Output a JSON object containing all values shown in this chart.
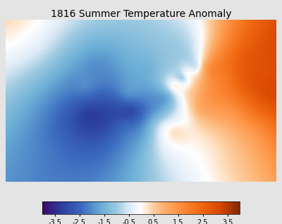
{
  "title": "1816 Summer Temperature Anomaly",
  "title_fontsize": 10,
  "colorbar_ticks": [
    -3.5,
    -2.5,
    -1.5,
    -0.5,
    0.5,
    1.5,
    2.5,
    3.5
  ],
  "colorbar_ticklabels": [
    "-3.5",
    "-2.5",
    "-1.5",
    "-0.5",
    "0.5",
    "1.5",
    "2.5",
    "3.5"
  ],
  "vmin": -4.0,
  "vmax": 4.0,
  "figsize": [
    4.0,
    3.18
  ],
  "dpi": 100,
  "map_extent": [
    -25,
    50,
    28,
    73
  ],
  "background_color": "#e4e4e4",
  "ocean_color": "#ccdcec",
  "land_nodata_color": "#d8d8d8",
  "grid_color": "#bbbbbb",
  "border_color": "#aaaaaa",
  "colormap_nodes": [
    [
      0.0,
      "#3b0a6e"
    ],
    [
      0.1,
      "#2b3f9e"
    ],
    [
      0.2,
      "#3b6bbf"
    ],
    [
      0.3,
      "#6baed6"
    ],
    [
      0.38,
      "#9ecae1"
    ],
    [
      0.44,
      "#deebf7"
    ],
    [
      0.5,
      "#ffffff"
    ],
    [
      0.56,
      "#fdd0a2"
    ],
    [
      0.62,
      "#fdae6b"
    ],
    [
      0.7,
      "#fd8d3c"
    ],
    [
      0.8,
      "#f16913"
    ],
    [
      0.9,
      "#d94801"
    ],
    [
      1.0,
      "#7f2704"
    ]
  ],
  "control_points": [
    [
      -8.5,
      39.5,
      -2.5
    ],
    [
      -3.7,
      40.4,
      -2.8
    ],
    [
      2.3,
      43.5,
      -3.0
    ],
    [
      -2.0,
      47.0,
      -3.2
    ],
    [
      10.0,
      47.5,
      -3.0
    ],
    [
      4.5,
      52.0,
      -2.5
    ],
    [
      -3.0,
      54.5,
      -2.0
    ],
    [
      9.0,
      52.0,
      -2.0
    ],
    [
      12.5,
      48.5,
      -2.5
    ],
    [
      15.0,
      51.0,
      -2.0
    ],
    [
      13.0,
      44.0,
      -2.0
    ],
    [
      17.5,
      47.0,
      -1.5
    ],
    [
      20.0,
      52.0,
      -1.5
    ],
    [
      24.0,
      57.0,
      -1.0
    ],
    [
      15.0,
      59.0,
      -1.5
    ],
    [
      10.0,
      62.0,
      -1.5
    ],
    [
      18.0,
      62.0,
      -1.2
    ],
    [
      28.0,
      60.0,
      -0.5
    ],
    [
      25.0,
      45.0,
      0.0
    ],
    [
      26.0,
      52.0,
      0.5
    ],
    [
      29.0,
      48.0,
      1.0
    ],
    [
      32.0,
      53.0,
      1.5
    ],
    [
      36.0,
      57.0,
      2.0
    ],
    [
      40.0,
      55.0,
      2.5
    ],
    [
      45.0,
      55.0,
      3.0
    ],
    [
      42.0,
      48.0,
      2.0
    ],
    [
      38.0,
      48.0,
      1.5
    ],
    [
      32.0,
      42.0,
      0.5
    ],
    [
      28.0,
      41.0,
      0.2
    ],
    [
      23.0,
      38.0,
      0.0
    ],
    [
      36.0,
      38.0,
      0.5
    ],
    [
      30.0,
      60.0,
      1.0
    ],
    [
      20.0,
      67.0,
      -1.0
    ],
    [
      27.0,
      68.0,
      -0.5
    ],
    [
      0.0,
      60.0,
      -2.0
    ],
    [
      -15.0,
      65.0,
      -0.5
    ],
    [
      48.0,
      58.0,
      3.0
    ],
    [
      50.0,
      52.0,
      3.2
    ],
    [
      45.0,
      42.0,
      1.5
    ],
    [
      40.0,
      38.0,
      0.8
    ],
    [
      35.0,
      32.0,
      0.3
    ],
    [
      22.0,
      42.0,
      0.3
    ],
    [
      18.0,
      43.5,
      -0.5
    ],
    [
      14.0,
      41.0,
      -1.5
    ],
    [
      8.0,
      44.0,
      -2.5
    ],
    [
      6.0,
      47.0,
      -3.0
    ],
    [
      -5.0,
      56.0,
      -2.0
    ],
    [
      5.0,
      57.0,
      -2.0
    ],
    [
      22.0,
      55.0,
      0.2
    ],
    [
      25.0,
      58.0,
      0.0
    ],
    [
      37.0,
      65.0,
      2.0
    ],
    [
      42.0,
      62.0,
      2.8
    ]
  ]
}
